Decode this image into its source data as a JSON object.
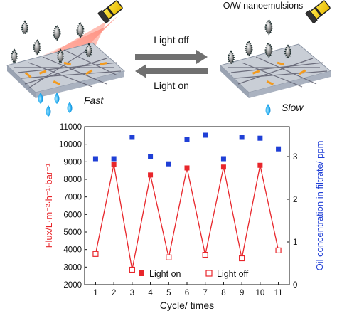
{
  "illustration": {
    "left_caption": "Fast",
    "right_caption": "Slow",
    "arrow_top_label": "Light off",
    "arrow_bottom_label": "Light on",
    "emulsion_label": "O/W nanoemulsions",
    "icons": [
      "flashlight-icon",
      "water-drop-icon",
      "oil-droplet-icon",
      "membrane-mesh-icon"
    ]
  },
  "chart_data": {
    "type": "scatter",
    "x": [
      1,
      2,
      3,
      4,
      5,
      6,
      7,
      8,
      9,
      10,
      11
    ],
    "xlabel": "Cycle/ times",
    "ylabel": "Flux/L·m⁻²·h⁻¹·bar⁻¹",
    "ylabel_right": "Oil concentration in filtrate/ ppm",
    "xlim": [
      0.4,
      11.6
    ],
    "ylim": [
      2000,
      11000
    ],
    "ylim_right": [
      0,
      3.7
    ],
    "x_ticks": [
      1,
      2,
      3,
      4,
      5,
      6,
      7,
      8,
      9,
      10,
      11
    ],
    "y_ticks": [
      2000,
      3000,
      4000,
      5000,
      6000,
      7000,
      8000,
      9000,
      10000,
      11000
    ],
    "y_right_ticks": [
      0,
      1,
      2,
      3
    ],
    "grid": false,
    "legend_position": "bottom-center",
    "series": [
      {
        "name": "Light on",
        "axis": "left",
        "marker": "filled-square",
        "color": "#e8262b",
        "x": [
          2,
          4,
          6,
          8,
          10
        ],
        "values": [
          8850,
          8250,
          8650,
          8700,
          8800
        ]
      },
      {
        "name": "Light off",
        "axis": "left",
        "marker": "open-square",
        "color": "#e8262b",
        "x": [
          1,
          3,
          5,
          7,
          9,
          11
        ],
        "values": [
          3750,
          2850,
          3550,
          3700,
          3500,
          3950
        ]
      },
      {
        "axis": "right",
        "marker": "filled-square",
        "color": "#1f3fd6",
        "x": [
          1,
          2,
          3,
          4,
          5,
          6,
          7,
          8,
          9,
          10,
          11
        ],
        "values": [
          2.95,
          2.95,
          3.45,
          3.0,
          2.83,
          3.4,
          3.5,
          2.95,
          3.45,
          3.43,
          3.18
        ]
      }
    ],
    "flux_line_color": "#e8262b",
    "left_axis_color": "#e8262b",
    "right_axis_color": "#1f3fd6"
  }
}
